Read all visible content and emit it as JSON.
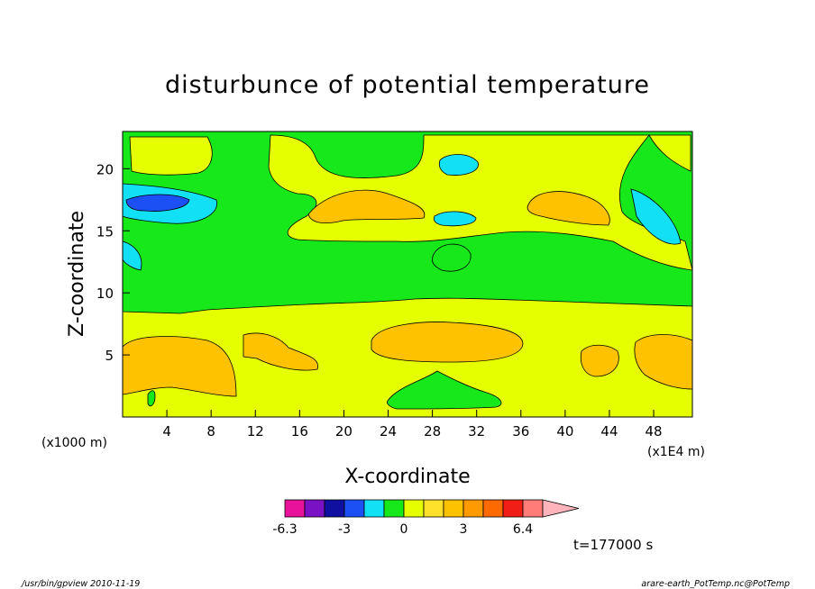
{
  "chart_data": {
    "type": "heatmap",
    "title": "disturbunce of potential temperature",
    "xlabel": "X-coordinate",
    "ylabel": "Z-coordinate",
    "x_unit_left": "(x1000 m)",
    "x_unit_right": "(x1E4 m)",
    "xlim": [
      0,
      51.5
    ],
    "ylim": [
      0,
      23
    ],
    "x_ticks": [
      "4",
      "8",
      "12",
      "16",
      "20",
      "24",
      "28",
      "32",
      "36",
      "40",
      "44",
      "48"
    ],
    "y_ticks": [
      "5",
      "10",
      "15",
      "20"
    ],
    "colorbar": {
      "colors": [
        "#e8139a",
        "#7a11c4",
        "#1010a0",
        "#1c50f5",
        "#12e0f5",
        "#16e81a",
        "#e6ff00",
        "#ffe02a",
        "#ffc200",
        "#ff9a00",
        "#ff6a00",
        "#f01e16",
        "#ff7c78",
        "#ffb4bc"
      ],
      "tick_labels": [
        "-6.3",
        "-3",
        "0",
        "3",
        "6.4"
      ]
    },
    "time_label": "t=177000 s",
    "regions": [
      {
        "level": "positive",
        "color": "#e6ff00",
        "desc": "lower layer z 0-9 broadly positive"
      },
      {
        "level": "high",
        "color": "#ffc200",
        "desc": "warm cells near x 2-9 and x 27-35 at z 5-7"
      },
      {
        "level": "zero",
        "color": "#16e81a",
        "desc": "middle band z 9-15"
      },
      {
        "level": "negative",
        "color": "#12e0f5",
        "desc": "cool cells near z 15-18"
      },
      {
        "level": "very-negative",
        "color": "#1c50f5",
        "desc": "strong cool cell near x 2-6, z 17"
      }
    ]
  },
  "footer": {
    "left": "/usr/bin/gpview  2010-11-19",
    "right": "arare-earth_PotTemp.nc@PotTemp"
  },
  "colors": {
    "yellow": "#e6ff00",
    "green": "#16e81a",
    "orange": "#ffc200",
    "cyan": "#12e0f5",
    "blue": "#1c50f5"
  }
}
